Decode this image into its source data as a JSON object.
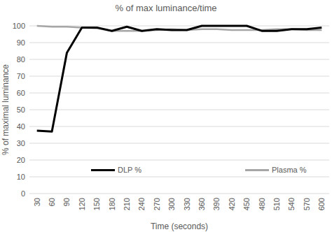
{
  "chart_data": {
    "type": "line",
    "title": "% of max luminance/time",
    "x_label": "Time (seconds)",
    "y_label": "% of maximal luminance",
    "categories": [
      "30",
      "60",
      "90",
      "120",
      "150",
      "180",
      "210",
      "240",
      "270",
      "300",
      "330",
      "360",
      "390",
      "420",
      "450",
      "480",
      "510",
      "540",
      "570",
      "600"
    ],
    "series": [
      {
        "name": "DLP %",
        "color": "#000000",
        "values": [
          37.5,
          37,
          84,
          99,
          99,
          97,
          99.5,
          97,
          98,
          97.5,
          97.5,
          100,
          100,
          100,
          100,
          97,
          97,
          98,
          98,
          99
        ]
      },
      {
        "name": "Plasma %",
        "color": "#a6a6a6",
        "values": [
          100,
          99.5,
          99.5,
          99,
          98.5,
          97,
          97,
          97,
          97.5,
          98,
          97.5,
          98,
          98,
          97.5,
          97.5,
          97.5,
          98,
          98,
          97.5,
          97.5
        ]
      }
    ],
    "ylim": [
      0,
      100
    ],
    "yticks": [
      0,
      10,
      20,
      30,
      40,
      50,
      60,
      70,
      80,
      90,
      100
    ],
    "grid": true,
    "legend": "bottom"
  }
}
